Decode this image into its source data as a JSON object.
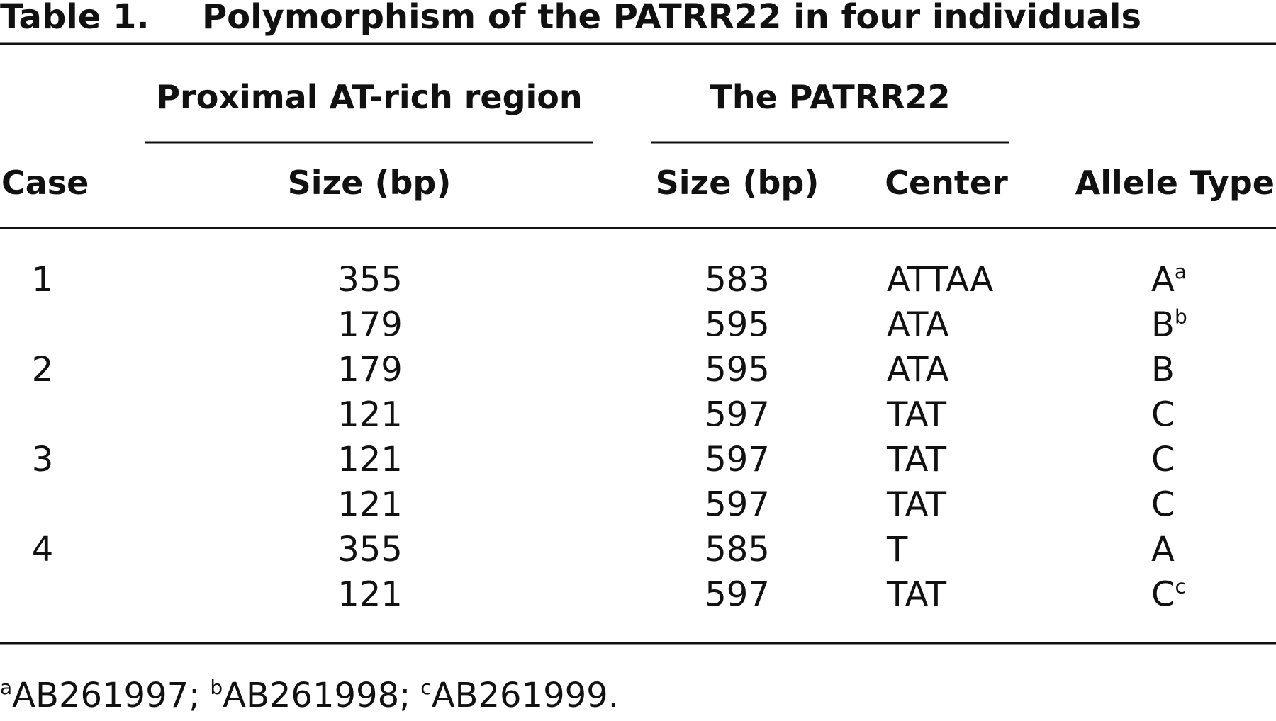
{
  "title": "Table 1.",
  "caption": "Polymorphism of the PATRR22 in four individuals",
  "table": {
    "group_headers": [
      "Proximal AT-rich region",
      "The PATRR22"
    ],
    "headers": [
      "Case",
      "Size (bp)",
      "Size (bp)",
      "Center",
      "Allele Type"
    ],
    "cases": [
      {
        "case": "1",
        "alleles": [
          [
            "355",
            "583",
            "ATTAA",
            {
              "text": "A",
              "note": "a"
            }
          ],
          [
            "179",
            "595",
            "ATA",
            {
              "text": "B",
              "note": "b"
            }
          ]
        ]
      },
      {
        "case": "2",
        "alleles": [
          [
            "179",
            "595",
            "ATA",
            {
              "text": "B"
            }
          ],
          [
            "121",
            "597",
            "TAT",
            {
              "text": "C"
            }
          ]
        ]
      },
      {
        "case": "3",
        "alleles": [
          [
            "121",
            "597",
            "TAT",
            {
              "text": "C"
            }
          ],
          [
            "121",
            "597",
            "TAT",
            {
              "text": "C"
            }
          ]
        ]
      },
      {
        "case": "4",
        "alleles": [
          [
            "355",
            "585",
            "T",
            {
              "text": "A"
            }
          ],
          [
            "121",
            "597",
            "TAT",
            {
              "text": "C",
              "note": "c"
            }
          ]
        ]
      }
    ]
  },
  "footnotes": [
    {
      "mark": "a",
      "text": "AB261997;"
    },
    {
      "mark": "b",
      "text": "AB261998;"
    },
    {
      "mark": "c",
      "text": "AB261999."
    }
  ]
}
